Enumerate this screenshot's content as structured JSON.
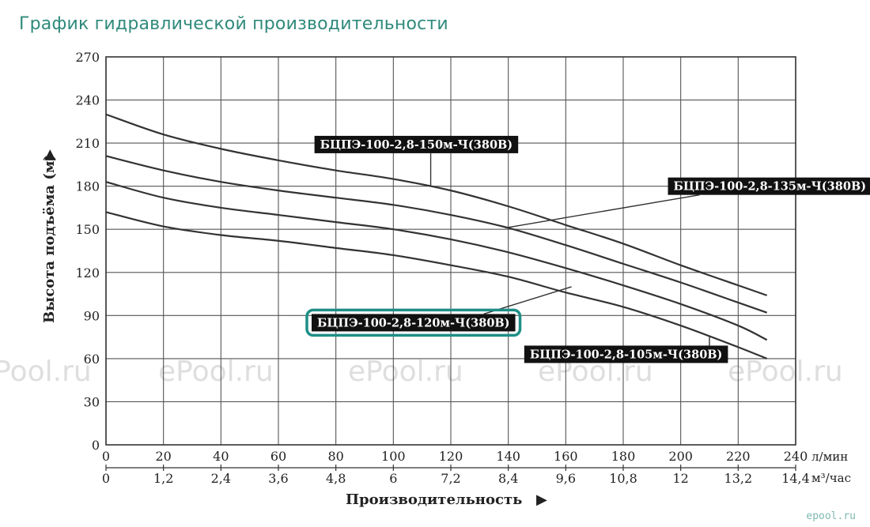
{
  "page": {
    "title": "График гидравлической производительности",
    "watermark": "ePool.ru",
    "footer_logo": "epool.ru"
  },
  "colors": {
    "title": "#2f8a7b",
    "highlight": "#1f8f86",
    "label_bg": "#111111",
    "curve": "#333333"
  },
  "chart_data": {
    "type": "line",
    "title": "",
    "ylabel": "Высота подъёма (м)",
    "xlabel": "Производительность",
    "ylim": [
      0,
      270
    ],
    "yticks": [
      0,
      30,
      60,
      90,
      120,
      150,
      180,
      210,
      240,
      270
    ],
    "x_lpm": {
      "unit": "л/мин",
      "range": [
        0,
        240
      ],
      "ticks": [
        "0",
        "20",
        "40",
        "60",
        "80",
        "100",
        "120",
        "140",
        "160",
        "180",
        "200",
        "220",
        "240"
      ]
    },
    "x_m3h": {
      "unit": "м³/час",
      "ticks": [
        "0",
        "1,2",
        "2,4",
        "3,6",
        "4,8",
        "6",
        "7,2",
        "8,4",
        "9,6",
        "10,8",
        "12",
        "13,2",
        "14,4"
      ]
    },
    "grid": true,
    "series": [
      {
        "name": "БЦПЭ-100-2,8-150м-Ч(380В)",
        "x": [
          0,
          20,
          40,
          60,
          80,
          100,
          120,
          140,
          160,
          180,
          200,
          220,
          230
        ],
        "values": [
          230,
          216,
          206,
          198,
          191,
          185,
          177,
          166,
          153,
          140,
          125,
          111,
          104
        ],
        "highlight": false
      },
      {
        "name": "БЦПЭ-100-2,8-135м-Ч(380В)",
        "x": [
          0,
          20,
          40,
          60,
          80,
          100,
          120,
          140,
          160,
          180,
          200,
          220,
          230
        ],
        "values": [
          201,
          191,
          183,
          177,
          172,
          167,
          160,
          151,
          139,
          126,
          113,
          99,
          92
        ],
        "highlight": false
      },
      {
        "name": "БЦПЭ-100-2,8-120м-Ч(380В)",
        "x": [
          0,
          20,
          40,
          60,
          80,
          100,
          120,
          140,
          160,
          180,
          200,
          220,
          230
        ],
        "values": [
          183,
          172,
          165,
          160,
          155,
          150,
          143,
          134,
          123,
          111,
          98,
          83,
          73
        ],
        "highlight": true
      },
      {
        "name": "БЦПЭ-100-2,8-105м-Ч(380В)",
        "x": [
          0,
          20,
          40,
          60,
          80,
          100,
          120,
          140,
          160,
          180,
          200,
          220,
          230
        ],
        "values": [
          162,
          152,
          146,
          142,
          137,
          132,
          125,
          117,
          106,
          96,
          83,
          68,
          60
        ],
        "highlight": false
      }
    ],
    "annotations": [
      {
        "series": 0,
        "label_at": [
          108,
          209
        ],
        "leader_to": [
          113,
          180
        ]
      },
      {
        "series": 1,
        "label_at": [
          231,
          180
        ],
        "leader_to": [
          139,
          151
        ]
      },
      {
        "series": 2,
        "label_at": [
          107,
          85
        ],
        "leader_to": [
          162,
          110
        ]
      },
      {
        "series": 3,
        "label_at": [
          181,
          63
        ],
        "leader_to": [
          210,
          76
        ]
      }
    ]
  }
}
